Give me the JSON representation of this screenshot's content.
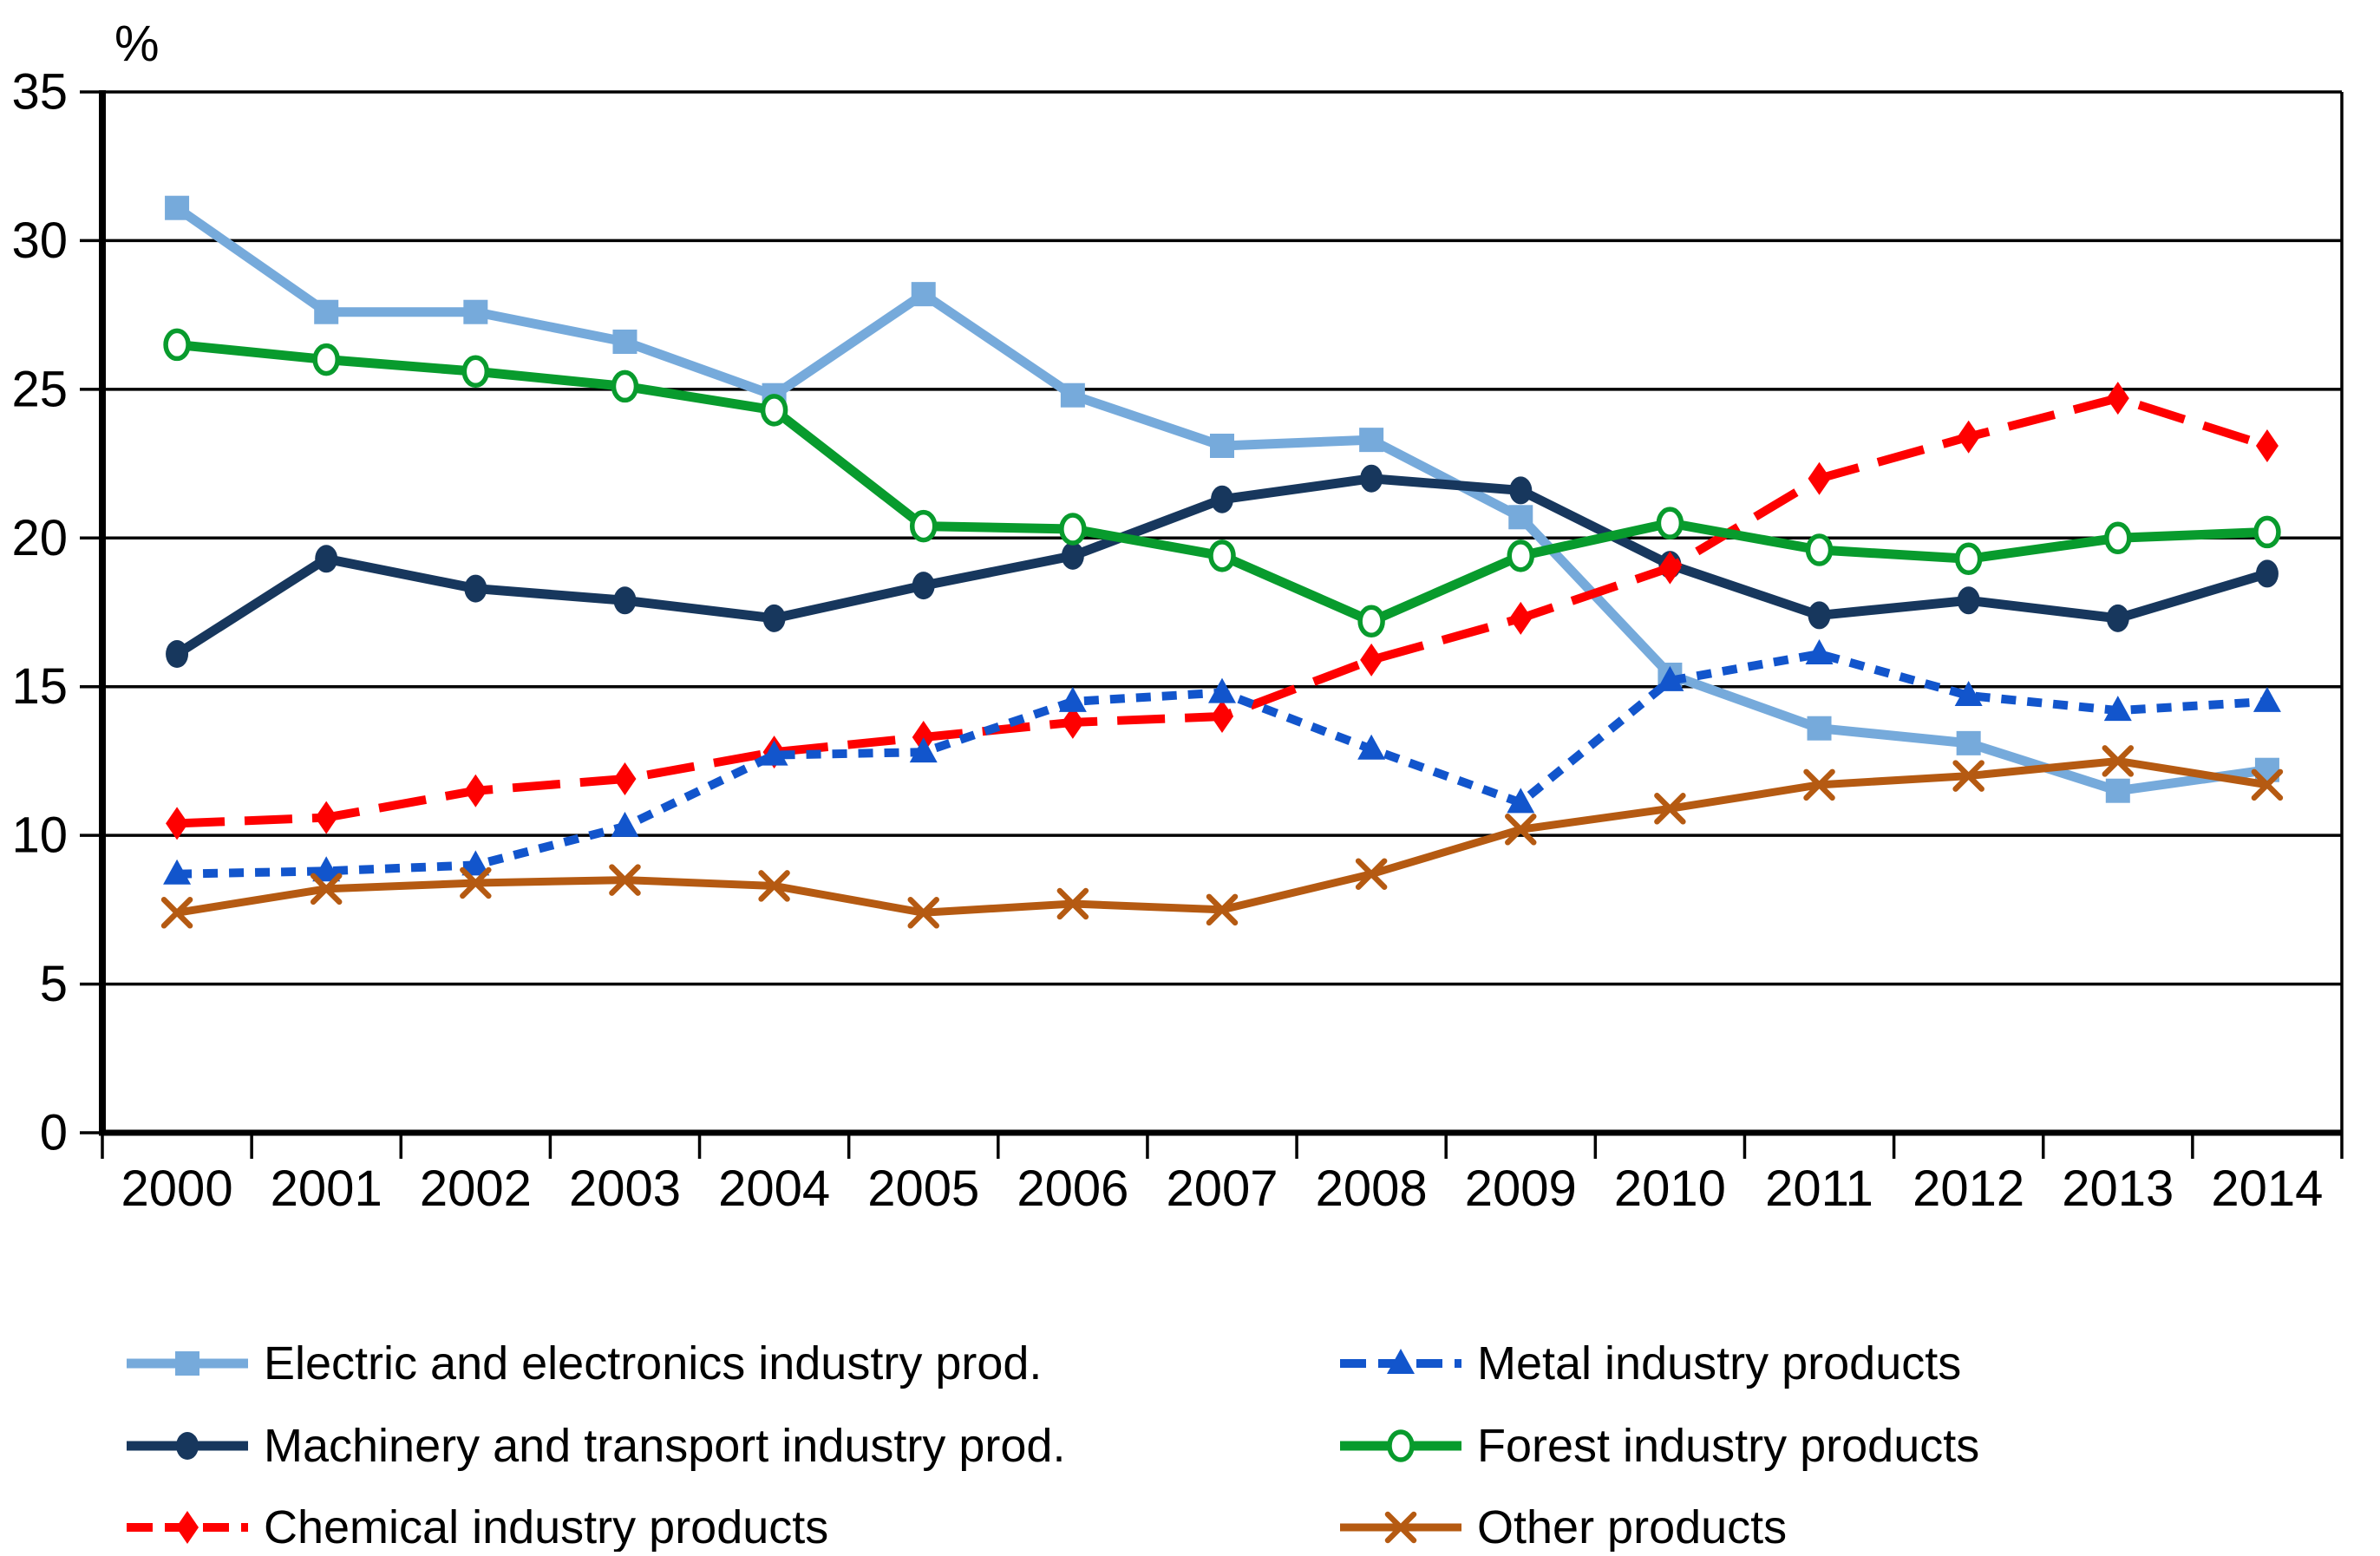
{
  "chart_data": {
    "type": "line",
    "title": "",
    "ylabel": "%",
    "xlabel": "",
    "ylim": [
      0,
      35
    ],
    "yticks": [
      0,
      5,
      10,
      15,
      20,
      25,
      30,
      35
    ],
    "grid": "horizontal-black-lines",
    "plot_border": "full-box",
    "legend_position": "bottom-two-columns",
    "categories": [
      "2000",
      "2001",
      "2002",
      "2003",
      "2004",
      "2005",
      "2006",
      "2007",
      "2008",
      "2009",
      "2010",
      "2011",
      "2012",
      "2013",
      "2014"
    ],
    "series": [
      {
        "name": "Electric and electronics industry prod.",
        "id": "electric-electronics",
        "color": "#76AADB",
        "marker": "square",
        "line": "solid",
        "values": [
          31.1,
          27.6,
          27.6,
          26.6,
          24.8,
          28.2,
          24.8,
          23.1,
          23.3,
          20.7,
          15.4,
          13.6,
          13.1,
          11.5,
          12.2
        ]
      },
      {
        "name": "Machinery and transport industry prod.",
        "id": "machinery-transport",
        "color": "#17375D",
        "marker": "circle",
        "line": "solid",
        "values": [
          16.1,
          19.3,
          18.3,
          17.9,
          17.3,
          18.4,
          19.4,
          21.3,
          22.0,
          21.6,
          19.1,
          17.4,
          17.9,
          17.3,
          18.8
        ]
      },
      {
        "name": "Chemical industry products",
        "id": "chemical",
        "color": "#FE0000",
        "marker": "diamond",
        "line": "long-dash",
        "values": [
          10.4,
          10.6,
          11.5,
          11.9,
          12.8,
          13.3,
          13.8,
          14.0,
          15.9,
          17.3,
          19.0,
          22.0,
          23.4,
          24.7,
          23.1
        ]
      },
      {
        "name": "Metal industry products",
        "id": "metal",
        "color": "#1255CC",
        "marker": "triangle",
        "line": "short-dash",
        "values": [
          8.7,
          8.8,
          9.0,
          10.3,
          12.7,
          12.8,
          14.5,
          14.8,
          12.9,
          11.1,
          15.2,
          16.1,
          14.7,
          14.2,
          14.5
        ]
      },
      {
        "name": "Forest industry products",
        "id": "forest",
        "color": "#089B2D",
        "marker": "open-circle",
        "line": "solid",
        "values": [
          26.5,
          26.0,
          25.6,
          25.1,
          24.3,
          20.4,
          20.3,
          19.4,
          17.2,
          19.4,
          20.5,
          19.6,
          19.3,
          20.0,
          20.2
        ]
      },
      {
        "name": "Other products",
        "id": "other",
        "color": "#B55A12",
        "marker": "x",
        "line": "solid",
        "values": [
          7.4,
          8.2,
          8.4,
          8.5,
          8.3,
          7.4,
          7.7,
          7.5,
          8.7,
          10.2,
          10.9,
          11.7,
          12.0,
          12.5,
          11.7
        ]
      }
    ],
    "legend": {
      "columns": [
        [
          "Electric and electronics industry prod.",
          "Machinery and transport industry prod.",
          "Chemical industry products"
        ],
        [
          "Metal industry products",
          "Forest industry products",
          "Other products"
        ]
      ]
    }
  }
}
